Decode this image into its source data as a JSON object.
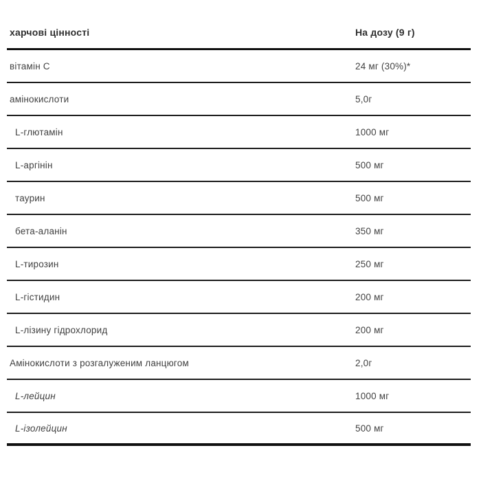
{
  "table": {
    "header": {
      "label": "харчові цінності",
      "value": "На дозу (9 г)"
    },
    "rows": [
      {
        "label": "вітамін С",
        "value": "24 мг (30%)*"
      },
      {
        "label": "амінокислоти",
        "value": "5,0г"
      },
      {
        "label": "L-глютамін",
        "value": "1000 мг"
      },
      {
        "label": "L-аргінін",
        "value": "500 мг"
      },
      {
        "label": "таурин",
        "value": "500 мг"
      },
      {
        "label": "бета-аланін",
        "value": "350 мг"
      },
      {
        "label": "L-тирозин",
        "value": "250 мг"
      },
      {
        "label": "L-гістидин",
        "value": "200 мг"
      },
      {
        "label": "L-лізину гідрохлорид",
        "value": "200 мг"
      },
      {
        "label": "Амінокислоти з розгалуженим ланцюгом",
        "value": "2,0г"
      },
      {
        "label": "L-лейцин",
        "value": "1000 мг"
      },
      {
        "label": "L-ізолейцин",
        "value": "500 мг"
      }
    ]
  }
}
